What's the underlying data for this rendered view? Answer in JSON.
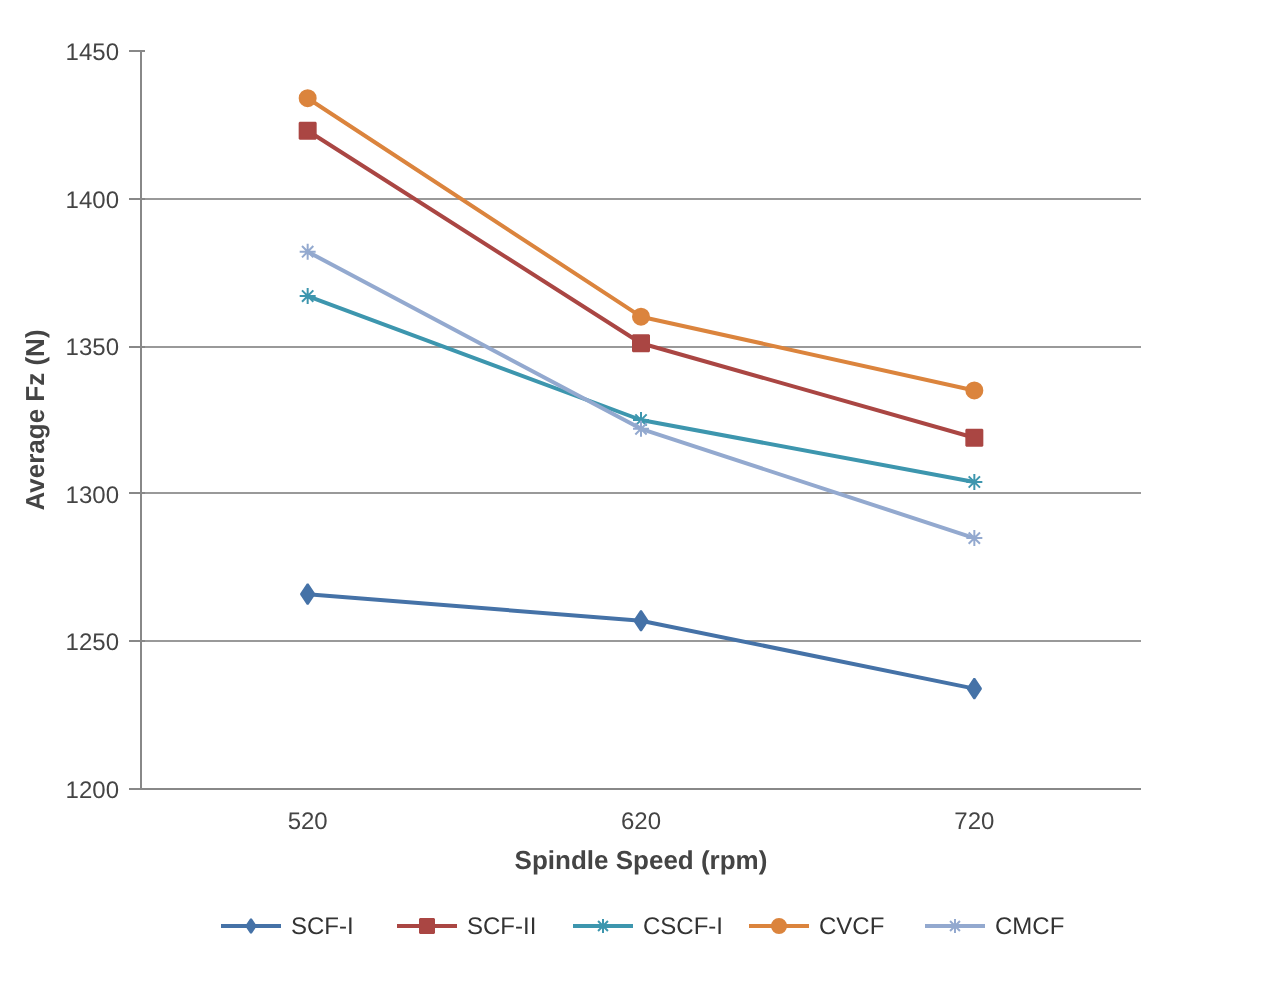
{
  "chart_data": {
    "type": "line",
    "xlabel": "Spindle Speed (rpm)",
    "ylabel": "Average Fz (N)",
    "categories": [
      "520",
      "620",
      "720"
    ],
    "ylim": [
      1200,
      1450
    ],
    "yticks": [
      1200,
      1250,
      1300,
      1350,
      1400,
      1450
    ],
    "grid": "y",
    "legend": "bottom",
    "series": [
      {
        "name": "SCF-I",
        "color": "#4572a7",
        "marker": "diamond",
        "values": [
          1266,
          1257,
          1234
        ]
      },
      {
        "name": "SCF-II",
        "color": "#aa4643",
        "marker": "square",
        "values": [
          1423,
          1351,
          1319
        ]
      },
      {
        "name": "CSCF-I",
        "color": "#3d96ae",
        "marker": "cross",
        "values": [
          1367,
          1325,
          1304
        ]
      },
      {
        "name": "CVCF",
        "color": "#db843d",
        "marker": "circle",
        "values": [
          1434,
          1360,
          1335
        ]
      },
      {
        "name": "CMCF",
        "color": "#93a9cf",
        "marker": "cross",
        "values": [
          1382,
          1322,
          1285
        ]
      }
    ]
  }
}
